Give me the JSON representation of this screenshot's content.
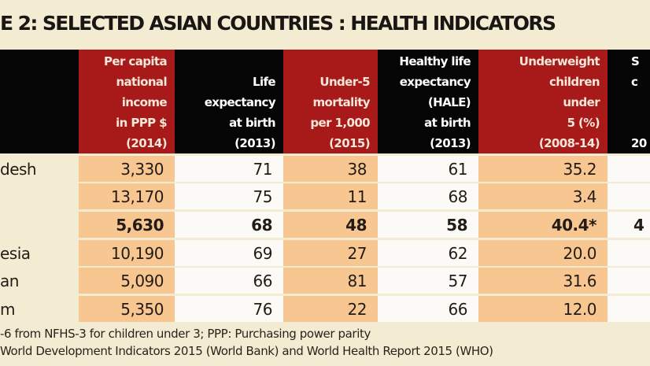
{
  "title": "E 2: SELECTED ASIAN COUNTRIES : HEALTH INDICATORS",
  "columns": [
    {
      "lines": [
        "Per capita",
        "national",
        "income",
        "in PPP $",
        "(2014)"
      ],
      "style": "red"
    },
    {
      "lines": [
        "Life",
        "expectancy",
        "at birth",
        "(2013)"
      ],
      "style": "black"
    },
    {
      "lines": [
        "Under-5",
        "mortality",
        "per 1,000",
        "(2015)"
      ],
      "style": "red"
    },
    {
      "lines": [
        "Healthy life",
        "expectancy",
        "(HALE)",
        "at birth",
        "(2013)"
      ],
      "style": "black"
    },
    {
      "lines": [
        "Underweight",
        "children",
        "under",
        "5 (%)",
        "(2008-14)"
      ],
      "style": "red"
    },
    {
      "lines": [
        "S",
        "c",
        "",
        "",
        "20"
      ],
      "style": "black"
    }
  ],
  "rows": [
    {
      "country": "desh",
      "values": [
        "3,330",
        "71",
        "38",
        "61",
        "35.2",
        ""
      ],
      "bold": false
    },
    {
      "country": "",
      "values": [
        "13,170",
        "75",
        "11",
        "68",
        "3.4",
        ""
      ],
      "bold": false
    },
    {
      "country": "",
      "values": [
        "5,630",
        "68",
        "48",
        "58",
        "40.4*",
        "4"
      ],
      "bold": true
    },
    {
      "country": "esia",
      "values": [
        "10,190",
        "69",
        "27",
        "62",
        "20.0",
        ""
      ],
      "bold": false
    },
    {
      "country": "an",
      "values": [
        "5,090",
        "66",
        "81",
        "57",
        "31.6",
        ""
      ],
      "bold": false
    },
    {
      "country": "m",
      "values": [
        "5,350",
        "76",
        "22",
        "66",
        "12.0",
        ""
      ],
      "bold": false
    }
  ],
  "footnotes": [
    "-6 from NFHS-3 for children under 3; PPP:  Purchasing power parity",
    "World Development Indicators 2015 (World Bank) and World Health Report 2015 (WHO)"
  ],
  "colors": {
    "header_red": "#a81a1a",
    "header_black": "#050505",
    "shade": "#f8c690",
    "background": "#f3ecd2"
  }
}
